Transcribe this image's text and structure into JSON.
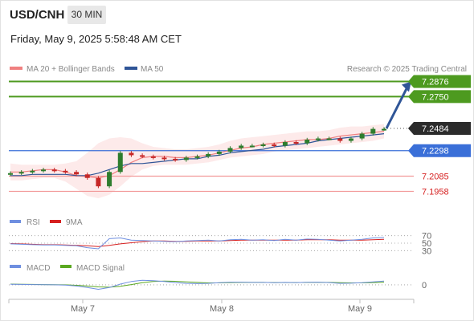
{
  "header": {
    "symbol": "USD/CNH",
    "timeframe": "30 MIN",
    "datetime": "Friday, May 9, 2025 5:58:48 AM CET"
  },
  "colors": {
    "ma20": "#f08080",
    "ma50": "#2f5597",
    "target": "#4d9a1f",
    "pivot": "#3a6fd8",
    "support": "#f29a9a",
    "candle_up": "#2e7d2e",
    "candle_down": "#c62828",
    "rsi": "#6f8fe0",
    "rsi_ma": "#d62020",
    "macd": "#6f8fe0",
    "macd_signal": "#5aa820",
    "arrow": "#2f5597"
  },
  "chart_data": [
    {
      "type": "line",
      "title": "USD/CNH 30 MIN",
      "legend": [
        "MA 20 + Bollinger Bands",
        "MA 50"
      ],
      "credit": "Research © 2025 Trading Central",
      "x_ticks": [
        "May 7",
        "May 8",
        "May 9"
      ],
      "ylim": [
        7.18,
        7.292
      ],
      "levels": [
        {
          "name": "target-2",
          "value": 7.2876,
          "label": "7.2876",
          "kind": "target"
        },
        {
          "name": "target-1",
          "value": 7.275,
          "label": "7.2750",
          "kind": "target"
        },
        {
          "name": "last",
          "value": 7.2484,
          "label": "7.2484",
          "kind": "last"
        },
        {
          "name": "pivot",
          "value": 7.2298,
          "label": "7.2298",
          "kind": "pivot"
        },
        {
          "name": "support-1",
          "value": 7.2085,
          "label": "7.2085",
          "kind": "support"
        },
        {
          "name": "support-2",
          "value": 7.1958,
          "label": "7.1958",
          "kind": "support"
        }
      ],
      "series": [
        {
          "name": "MA 20",
          "values": [
            7.212,
            7.212,
            7.213,
            7.214,
            7.214,
            7.212,
            7.209,
            7.208,
            7.207,
            7.209,
            7.214,
            7.22,
            7.224,
            7.225,
            7.225,
            7.224,
            7.224,
            7.225,
            7.226,
            7.228,
            7.23,
            7.232,
            7.233,
            7.235,
            7.236,
            7.237,
            7.238,
            7.239,
            7.239,
            7.24,
            7.242,
            7.243,
            7.244,
            7.245,
            7.246
          ]
        },
        {
          "name": "MA 50",
          "values": [
            7.209,
            7.209,
            7.21,
            7.21,
            7.21,
            7.21,
            7.209,
            7.209,
            7.211,
            7.214,
            7.217,
            7.219,
            7.219,
            7.22,
            7.221,
            7.222,
            7.223,
            7.223,
            7.225,
            7.226,
            7.228,
            7.229,
            7.23,
            7.231,
            7.233,
            7.234,
            7.235,
            7.236,
            7.238,
            7.239,
            7.24,
            7.241,
            7.242,
            7.243,
            7.244
          ]
        },
        {
          "name": "Price",
          "values": [
            7.211,
            7.212,
            7.213,
            7.214,
            7.213,
            7.212,
            7.21,
            7.207,
            7.2,
            7.212,
            7.228,
            7.226,
            7.225,
            7.224,
            7.223,
            7.222,
            7.224,
            7.225,
            7.227,
            7.229,
            7.232,
            7.234,
            7.234,
            7.235,
            7.234,
            7.237,
            7.236,
            7.239,
            7.24,
            7.24,
            7.238,
            7.24,
            7.244,
            7.248,
            7.248
          ]
        }
      ],
      "bollinger": {
        "upper": [
          7.219,
          7.218,
          7.218,
          7.218,
          7.218,
          7.219,
          7.221,
          7.228,
          7.236,
          7.24,
          7.241,
          7.24,
          7.236,
          7.233,
          7.232,
          7.231,
          7.231,
          7.232,
          7.233,
          7.235,
          7.238,
          7.24,
          7.241,
          7.242,
          7.243,
          7.244,
          7.245,
          7.246,
          7.246,
          7.247,
          7.249,
          7.25,
          7.25,
          7.251,
          7.252
        ],
        "lower": [
          7.205,
          7.205,
          7.206,
          7.207,
          7.207,
          7.204,
          7.198,
          7.192,
          7.19,
          7.193,
          7.2,
          7.208,
          7.214,
          7.217,
          7.218,
          7.218,
          7.218,
          7.219,
          7.22,
          7.222,
          7.224,
          7.225,
          7.226,
          7.227,
          7.229,
          7.23,
          7.231,
          7.232,
          7.233,
          7.234,
          7.235,
          7.236,
          7.237,
          7.238,
          7.24
        ]
      },
      "arrow": {
        "from": 7.2484,
        "to": 7.2876
      }
    },
    {
      "type": "line",
      "legend": [
        "RSI",
        "9MA"
      ],
      "ylim": [
        20,
        80
      ],
      "levels": [
        70,
        50,
        30
      ],
      "level_labels": [
        "70",
        "50",
        "30"
      ],
      "series": [
        {
          "name": "RSI",
          "values": [
            48,
            47,
            46,
            45,
            45,
            44,
            43,
            38,
            35,
            62,
            64,
            58,
            57,
            56,
            55,
            54,
            56,
            57,
            58,
            56,
            59,
            60,
            58,
            59,
            57,
            60,
            58,
            61,
            60,
            58,
            56,
            58,
            60,
            64,
            65
          ]
        },
        {
          "name": "9MA",
          "values": [
            49,
            48,
            47,
            46,
            46,
            45,
            44,
            43,
            41,
            44,
            48,
            51,
            54,
            56,
            56,
            55,
            55,
            56,
            56,
            56,
            57,
            58,
            58,
            58,
            58,
            58,
            58,
            59,
            59,
            59,
            58,
            58,
            58,
            59,
            60
          ]
        }
      ]
    },
    {
      "type": "line",
      "legend": [
        "MACD",
        "MACD Signal"
      ],
      "ylim": [
        -0.007,
        0.008
      ],
      "zero_label": "0",
      "series": [
        {
          "name": "MACD",
          "values": [
            0.0004,
            0.0003,
            0.0002,
            0.0001,
            0.0,
            -0.0002,
            -0.0008,
            -0.0018,
            -0.003,
            -0.0018,
            0.0005,
            0.0022,
            0.003,
            0.0028,
            0.0022,
            0.0015,
            0.001,
            0.0008,
            0.001,
            0.0014,
            0.0018,
            0.0018,
            0.0016,
            0.0016,
            0.0014,
            0.0016,
            0.0015,
            0.0017,
            0.0018,
            0.0015,
            0.001,
            0.0011,
            0.0014,
            0.002,
            0.0025
          ]
        },
        {
          "name": "MACD Signal",
          "values": [
            0.0005,
            0.0004,
            0.0003,
            0.0002,
            0.0001,
            0.0,
            -0.0003,
            -0.0008,
            -0.0014,
            -0.0016,
            -0.001,
            0.0002,
            0.0014,
            0.0022,
            0.0025,
            0.0024,
            0.002,
            0.0016,
            0.0013,
            0.0013,
            0.0015,
            0.0016,
            0.0016,
            0.0016,
            0.0015,
            0.0015,
            0.0015,
            0.0016,
            0.0016,
            0.0016,
            0.0014,
            0.0013,
            0.0013,
            0.0015,
            0.0018
          ]
        }
      ]
    }
  ]
}
